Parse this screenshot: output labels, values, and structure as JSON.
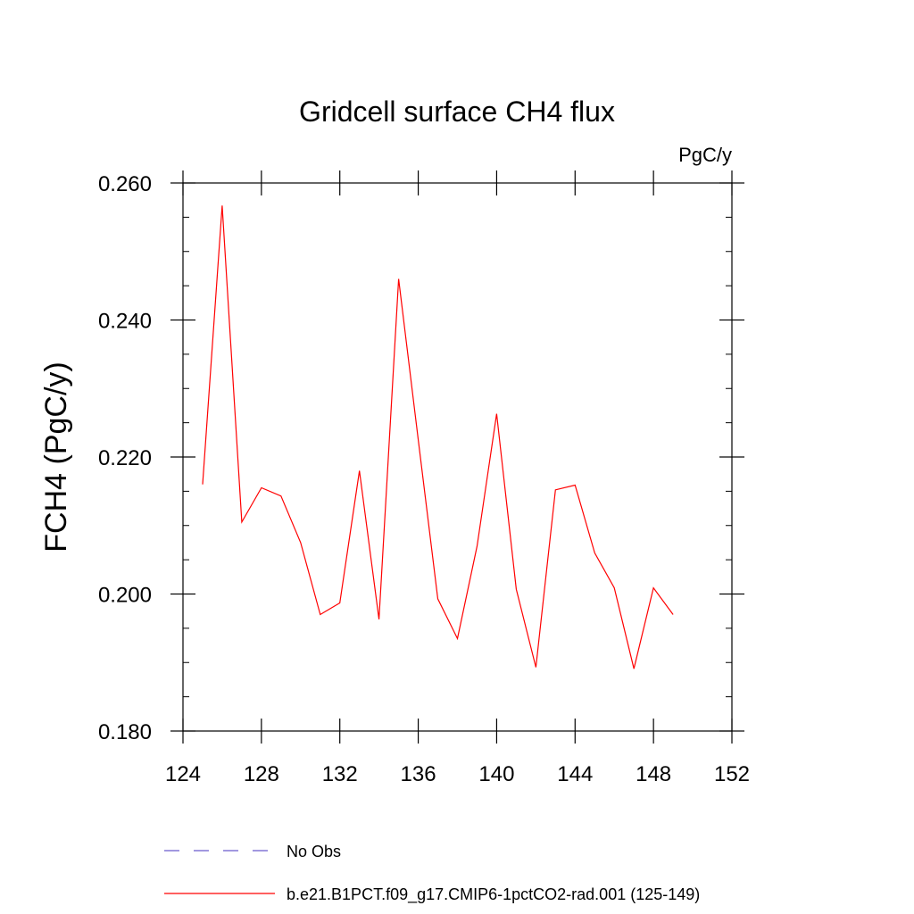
{
  "chart_data": {
    "type": "line",
    "title": "Gridcell surface CH4 flux",
    "units_label": "PgC/y",
    "ylabel": "FCH4  (PgC/y)",
    "xlabel": "",
    "xlim": [
      124,
      152
    ],
    "ylim": [
      0.18,
      0.26
    ],
    "x_ticks": [
      124,
      128,
      132,
      136,
      140,
      144,
      148,
      152
    ],
    "x_tick_labels": [
      "124",
      "128",
      "132",
      "136",
      "140",
      "144",
      "148",
      "152"
    ],
    "y_ticks": [
      0.18,
      0.2,
      0.22,
      0.24,
      0.26
    ],
    "y_tick_labels": [
      "0.180",
      "0.200",
      "0.220",
      "0.240",
      "0.260"
    ],
    "grid": false,
    "legend_placement": "bottom",
    "series": [
      {
        "name": "b.e21.B1PCT.f09_g17.CMIP6-1pctCO2-rad.001 (125-149)",
        "color": "#ff0000",
        "dash": "solid",
        "x": [
          125,
          126,
          127,
          128,
          129,
          130,
          131,
          132,
          133,
          134,
          135,
          136,
          137,
          138,
          139,
          140,
          141,
          142,
          143,
          144,
          145,
          146,
          147,
          148,
          149
        ],
        "y": [
          0.216,
          0.2567,
          0.2105,
          0.2155,
          0.2143,
          0.2075,
          0.197,
          0.1987,
          0.218,
          0.1963,
          0.246,
          0.2225,
          0.1993,
          0.1935,
          0.207,
          0.2263,
          0.2007,
          0.1893,
          0.2152,
          0.2159,
          0.206,
          0.2009,
          0.1891,
          0.2009,
          0.197
        ]
      }
    ],
    "legend": [
      {
        "label": "No Obs",
        "color": "#6a5acd",
        "dash": "dashed"
      },
      {
        "label": "b.e21.B1PCT.f09_g17.CMIP6-1pctCO2-rad.001 (125-149)",
        "color": "#ff0000",
        "dash": "solid"
      }
    ]
  }
}
